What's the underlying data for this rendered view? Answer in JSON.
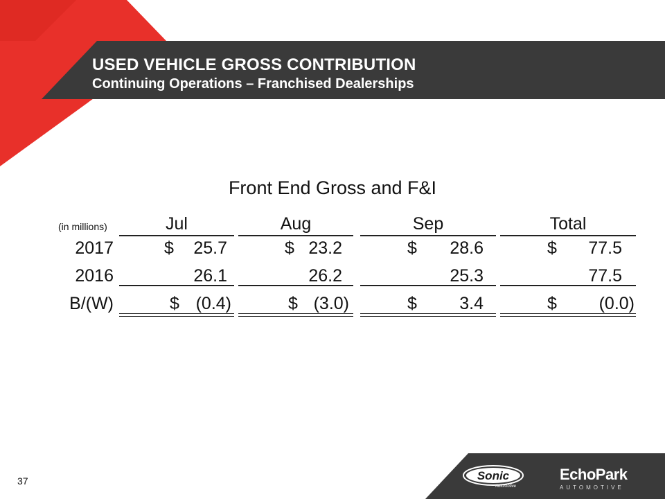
{
  "header": {
    "title": "USED VEHICLE GROSS CONTRIBUTION",
    "subtitle": "Continuing Operations – Franchised Dealerships",
    "accent_color": "#e8302a",
    "band_color": "#3a3a3a"
  },
  "table": {
    "title": "Front End Gross and F&I",
    "units": "(in millions)",
    "columns": [
      "Jul",
      "Aug",
      "Sep",
      "Total"
    ],
    "rows": [
      {
        "label": "2017",
        "cells": [
          {
            "cur": "$",
            "val": "25.7"
          },
          {
            "cur": "$",
            "val": "23.2"
          },
          {
            "cur": "$",
            "val": "28.6"
          },
          {
            "cur": "$",
            "val": "77.5"
          }
        ]
      },
      {
        "label": "2016",
        "cells": [
          {
            "cur": "",
            "val": "26.1"
          },
          {
            "cur": "",
            "val": "26.2"
          },
          {
            "cur": "",
            "val": "25.3"
          },
          {
            "cur": "",
            "val": "77.5"
          }
        ]
      },
      {
        "label": "B/(W)",
        "cells": [
          {
            "cur": "$",
            "val": "(0.4)"
          },
          {
            "cur": "$",
            "val": "(3.0)"
          },
          {
            "cur": "$",
            "val": "3.4"
          },
          {
            "cur": "$",
            "val": "(0.0)"
          }
        ]
      }
    ]
  },
  "footer": {
    "page_number": "37",
    "logo_sonic_icon": "sonic-automotive-logo",
    "logo_echo_main": "EchoPark",
    "logo_echo_sub": "AUTOMOTIVE"
  }
}
